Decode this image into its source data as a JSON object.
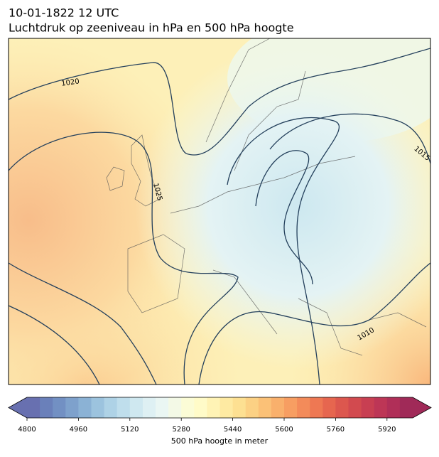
{
  "header": {
    "date": "10-01-1822 12 UTC",
    "title": "Luchtdruk op zeeniveau in hPa en 500 hPa hoogte"
  },
  "map": {
    "contour_labels": [
      "1020",
      "1025",
      "1015",
      "1010"
    ]
  },
  "colorbar": {
    "label": "500 hPa hoogte in meter",
    "lim": [
      4800,
      6000
    ],
    "ticks": [
      4800,
      4960,
      5120,
      5280,
      5440,
      5600,
      5760,
      5920
    ],
    "extend": "both",
    "colors": [
      "#6870b0",
      "#6a80ba",
      "#7290c3",
      "#7ea1cc",
      "#8bb2d5",
      "#9cc3de",
      "#aed2e6",
      "#bfdeec",
      "#cfe8f0",
      "#def0f3",
      "#eaf6f3",
      "#f3f9e6",
      "#fbfcd6",
      "#fffbc8",
      "#fff3b5",
      "#feeaa2",
      "#fde092",
      "#fcd184",
      "#fbc177",
      "#f9b06c",
      "#f79e62",
      "#f38b5a",
      "#ee7853",
      "#e6664f",
      "#dc574e",
      "#d24a4f",
      "#c83f52",
      "#bd3656",
      "#b02f58",
      "#a02a58"
    ]
  }
}
